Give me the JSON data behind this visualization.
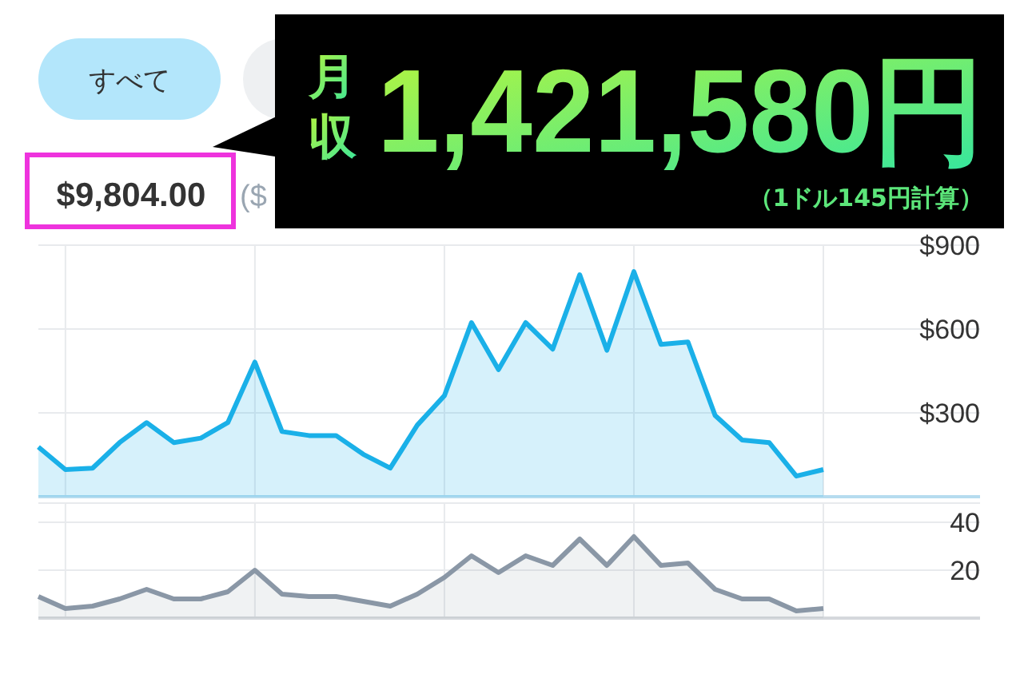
{
  "chart_data": [
    {
      "type": "area",
      "title": "$9,804.00",
      "categories": [
        null,
        null,
        null,
        null,
        null,
        null,
        null,
        null,
        null,
        null,
        null,
        null,
        null,
        null,
        null,
        null,
        null,
        null,
        null,
        null,
        null,
        null,
        null,
        null,
        null,
        null,
        null,
        null,
        null,
        null
      ],
      "series": [
        {
          "color": "#1ab0e8",
          "values": [
            178,
            97,
            102,
            194,
            265,
            194,
            210,
            265,
            482,
            233,
            219,
            219,
            152,
            102,
            256,
            362,
            623,
            455,
            623,
            528,
            794,
            524,
            805,
            545,
            554,
            291,
            203,
            194,
            74,
            97
          ]
        }
      ],
      "ylim": [
        0,
        900
      ],
      "yticks": [
        {
          "value": 300,
          "label": "$300"
        },
        {
          "value": 600,
          "label": "$600"
        },
        {
          "value": 900,
          "label": "$900"
        }
      ],
      "grid": true,
      "tick_labels": "y",
      "annotations": [
        "すべて",
        "($",
        "月収",
        "1,421,580円",
        "（1ドル145円計算）"
      ]
    },
    {
      "type": "area",
      "categories": [
        null,
        null,
        null,
        null,
        null,
        null,
        null,
        null,
        null,
        null,
        null,
        null,
        null,
        null,
        null,
        null,
        null,
        null,
        null,
        null,
        null,
        null,
        null,
        null,
        null,
        null,
        null,
        null,
        null,
        null
      ],
      "series": [
        {
          "color": "#8a97a6",
          "values": [
            9,
            4,
            5,
            8,
            12,
            8,
            8,
            11,
            20,
            10,
            9,
            9,
            7,
            5,
            10,
            17,
            26,
            19,
            26,
            22,
            33,
            22,
            34,
            22,
            23,
            12,
            8,
            8,
            3,
            4
          ]
        }
      ],
      "ylim": [
        0,
        48
      ],
      "yticks": [
        20,
        40
      ],
      "grid": true,
      "tick_labels": "y"
    }
  ]
}
